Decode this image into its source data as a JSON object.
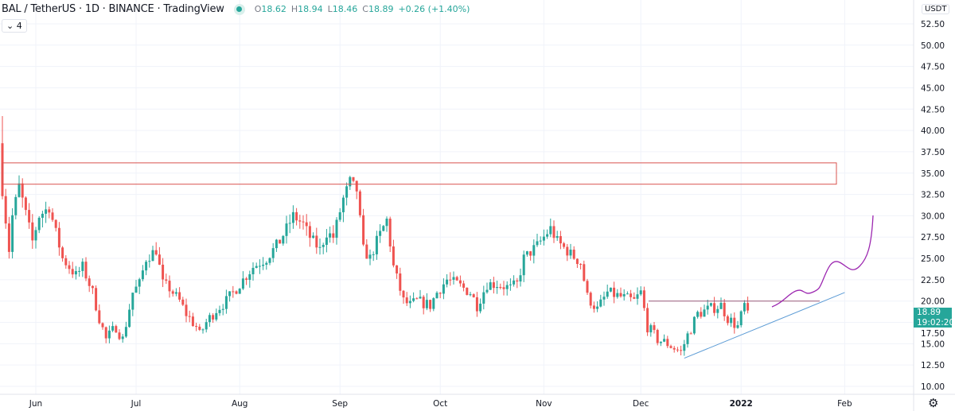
{
  "header": {
    "title": "BAL / TetherUS · 1D · BINANCE · TradingView",
    "ohlc": {
      "o_label": "O",
      "o": "18.62",
      "h_label": "H",
      "h": "18.94",
      "l_label": "L",
      "l": "18.46",
      "c_label": "C",
      "c": "18.89",
      "change": "+0.26 (+1.40%)"
    },
    "indicators_toggle": "⌄ 4"
  },
  "price_axis": {
    "currency": "USDT",
    "current_price": "18.89",
    "countdown": "19:02:20",
    "settings_icon": "gear-icon"
  },
  "colors": {
    "up": "#26a69a",
    "down": "#ef5350",
    "zone": "#d9534f",
    "trendline": "#5b9bd5",
    "projection": "#9c27b0"
  },
  "chart_data": {
    "type": "candlestick",
    "symbol": "BAL/USDT",
    "interval": "1D",
    "y_ticks": [
      "10.00",
      "12.50",
      "15.00",
      "17.50",
      "20.00",
      "22.50",
      "25.00",
      "27.50",
      "30.00",
      "32.50",
      "35.00",
      "37.50",
      "40.00",
      "42.50",
      "45.00",
      "47.50",
      "50.00",
      "52.50"
    ],
    "ylim": [
      10,
      52.5
    ],
    "x_ticks": [
      {
        "label": "Jun",
        "day": 10
      },
      {
        "label": "Jul",
        "day": 40
      },
      {
        "label": "Aug",
        "day": 71
      },
      {
        "label": "Sep",
        "day": 101
      },
      {
        "label": "Oct",
        "day": 131
      },
      {
        "label": "Nov",
        "day": 162
      },
      {
        "label": "Dec",
        "day": 191
      },
      {
        "label": "2022",
        "day": 221,
        "bold": true
      },
      {
        "label": "Feb",
        "day": 252
      }
    ],
    "close_keypoints": [
      [
        0,
        33
      ],
      [
        2,
        26
      ],
      [
        3,
        30
      ],
      [
        5,
        33.5
      ],
      [
        9,
        27
      ],
      [
        11,
        30
      ],
      [
        14,
        31
      ],
      [
        16,
        28
      ],
      [
        18,
        25
      ],
      [
        22,
        23
      ],
      [
        24,
        24
      ],
      [
        27,
        21
      ],
      [
        29,
        18
      ],
      [
        31,
        15.5
      ],
      [
        34,
        17
      ],
      [
        36,
        15.5
      ],
      [
        39,
        21
      ],
      [
        41,
        22
      ],
      [
        43,
        25
      ],
      [
        46,
        26
      ],
      [
        48,
        22
      ],
      [
        50,
        21.5
      ],
      [
        53,
        20
      ],
      [
        55,
        18.5
      ],
      [
        58,
        17
      ],
      [
        59,
        16
      ],
      [
        61,
        17.5
      ],
      [
        64,
        19
      ],
      [
        67,
        20
      ],
      [
        71,
        22
      ],
      [
        75,
        24
      ],
      [
        79,
        25
      ],
      [
        83,
        27
      ],
      [
        85,
        28.5
      ],
      [
        87,
        30
      ],
      [
        90,
        29
      ],
      [
        92,
        27.5
      ],
      [
        95,
        26
      ],
      [
        97,
        28
      ],
      [
        99,
        27.5
      ],
      [
        102,
        32
      ],
      [
        104,
        34
      ],
      [
        106,
        33
      ],
      [
        108,
        26
      ],
      [
        110,
        25
      ],
      [
        112,
        27
      ],
      [
        115,
        29.5
      ],
      [
        117,
        24
      ],
      [
        120,
        20
      ],
      [
        122,
        19.5
      ],
      [
        124,
        20
      ],
      [
        128,
        19.5
      ],
      [
        130,
        21
      ],
      [
        133,
        22.5
      ],
      [
        136,
        22
      ],
      [
        140,
        21
      ],
      [
        142,
        19.5
      ],
      [
        145,
        22
      ],
      [
        148,
        22
      ],
      [
        152,
        21.5
      ],
      [
        154,
        22
      ],
      [
        156,
        25
      ],
      [
        160,
        26.5
      ],
      [
        164,
        28.5
      ],
      [
        166,
        27
      ],
      [
        170,
        25.5
      ],
      [
        173,
        24.5
      ],
      [
        175,
        20.5
      ],
      [
        178,
        19
      ],
      [
        181,
        21
      ],
      [
        185,
        20.5
      ],
      [
        189,
        20
      ],
      [
        191,
        21
      ],
      [
        193,
        17
      ],
      [
        196,
        15.5
      ],
      [
        199,
        15
      ],
      [
        203,
        14
      ],
      [
        205,
        16
      ],
      [
        208,
        18.5
      ],
      [
        211,
        19
      ],
      [
        215,
        19.5
      ],
      [
        217,
        18
      ],
      [
        220,
        17
      ],
      [
        222,
        19.5
      ],
      [
        223,
        18.89
      ]
    ],
    "first_open": 38.5,
    "drawings": {
      "resistance_zone": [
        33.7,
        36.2
      ],
      "horizontal_level": 20.0,
      "trendline": [
        [
          204,
          13.3
        ],
        [
          252,
          21.0
        ]
      ]
    }
  }
}
